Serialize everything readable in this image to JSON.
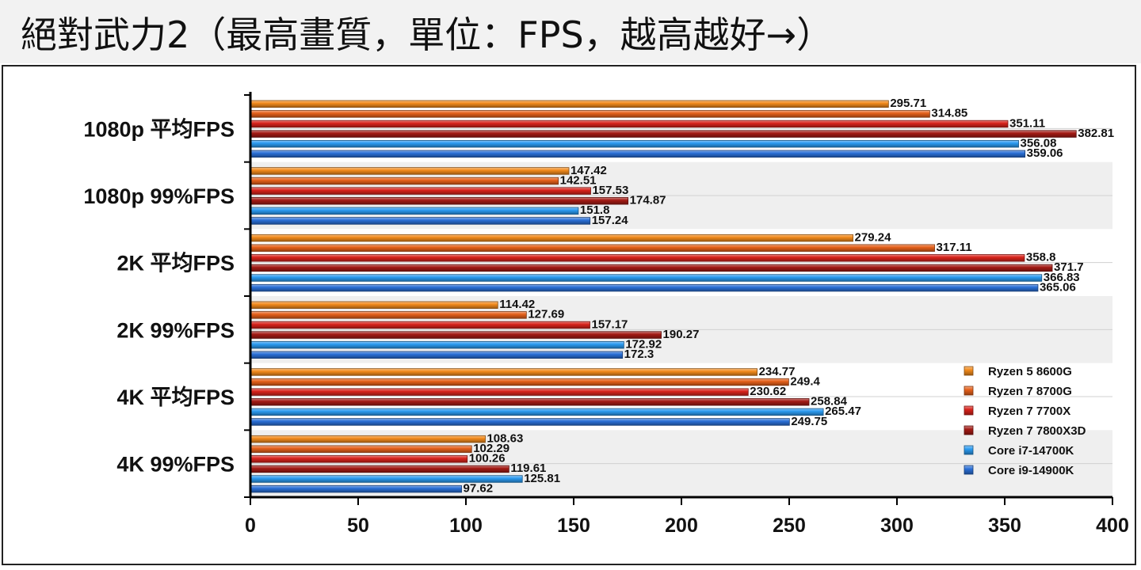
{
  "title": "絕對武力2（最高畫質，單位：FPS，越高越好→）",
  "chart_data": {
    "type": "bar",
    "orientation": "horizontal",
    "title": "絕對武力2（最高畫質，單位：FPS，越高越好→）",
    "xlabel": "",
    "ylabel": "",
    "xlim": [
      0,
      400
    ],
    "xticks": [
      0,
      50,
      100,
      150,
      200,
      250,
      300,
      350,
      400
    ],
    "grid": false,
    "legend_position": "right",
    "categories": [
      "1080p 平均FPS",
      "1080p 99%FPS",
      "2K 平均FPS",
      "2K 99%FPS",
      "4K 平均FPS",
      "4K 99%FPS"
    ],
    "series": [
      {
        "name": "Ryzen 5 8600G",
        "color": "#f28a1c",
        "values": [
          295.71,
          147.42,
          279.24,
          114.42,
          234.77,
          108.63
        ]
      },
      {
        "name": "Ryzen 7 8700G",
        "color": "#e5601a",
        "values": [
          314.85,
          142.51,
          317.11,
          127.69,
          249.4,
          102.29
        ]
      },
      {
        "name": "Ryzen 7 7700X",
        "color": "#d8231b",
        "values": [
          351.11,
          157.53,
          358.8,
          157.17,
          230.62,
          100.26
        ]
      },
      {
        "name": "Ryzen 7 7800X3D",
        "color": "#a31a14",
        "values": [
          382.81,
          174.87,
          371.7,
          190.27,
          258.84,
          119.61
        ]
      },
      {
        "name": "Core i7-14700K",
        "color": "#2b9af0",
        "values": [
          356.08,
          151.8,
          366.83,
          172.92,
          265.47,
          125.81
        ]
      },
      {
        "name": "Core i9-14900K",
        "color": "#2a6fd6",
        "values": [
          359.06,
          157.24,
          365.06,
          172.3,
          249.75,
          97.62
        ]
      }
    ]
  }
}
